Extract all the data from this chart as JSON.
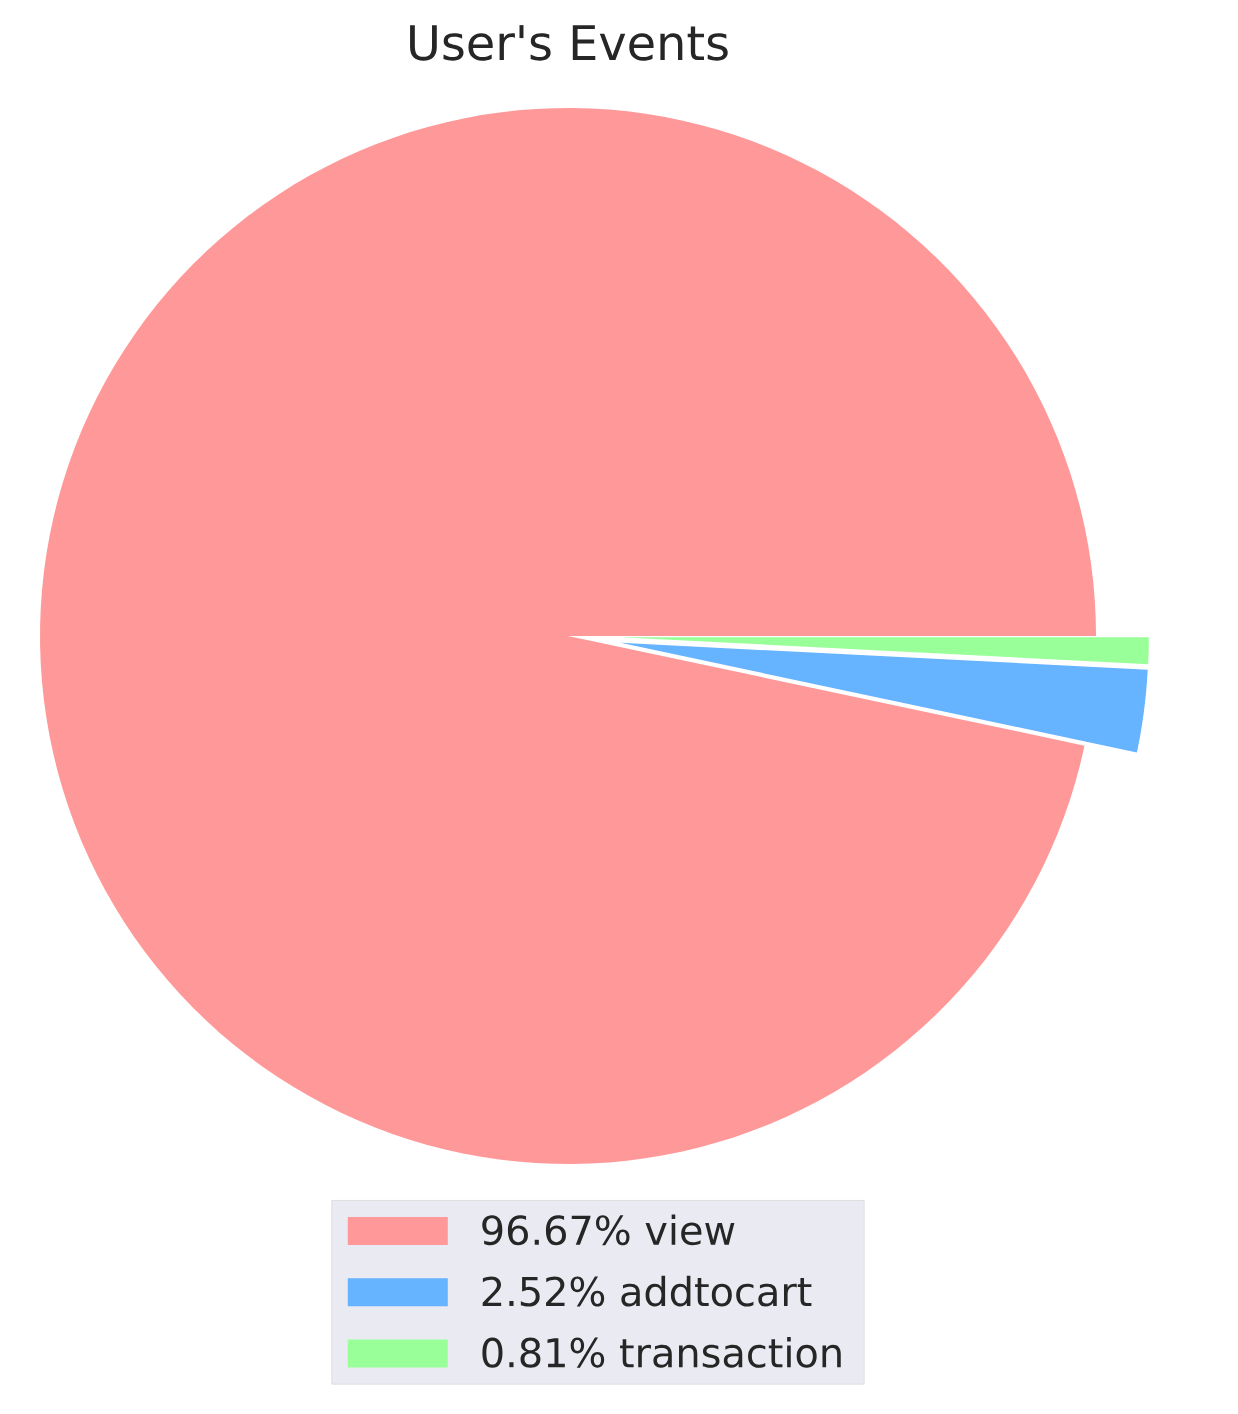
{
  "chart_data": {
    "type": "pie",
    "title": "User's  Events",
    "categories": [
      "96.67%  view",
      "2.52%  addtocart",
      "0.81%  transaction"
    ],
    "values": [
      96.67,
      2.52,
      0.81
    ],
    "colors": [
      "#ff9999",
      "#66b3ff",
      "#99ff99"
    ],
    "legend": "bottom"
  }
}
